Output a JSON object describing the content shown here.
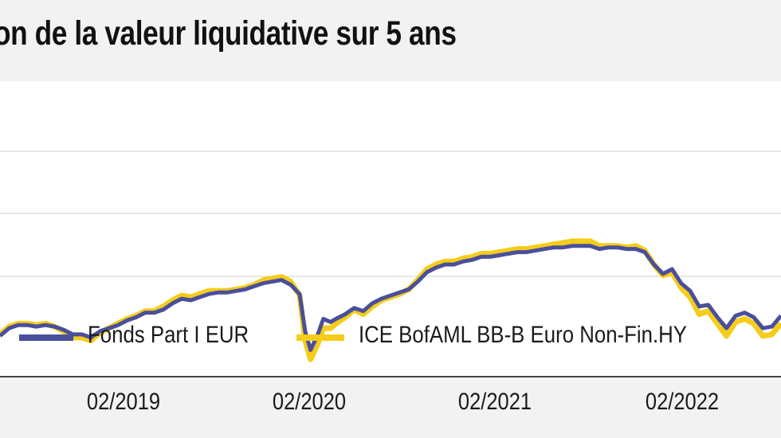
{
  "title": "on de la valeur liquidative sur 5 ans",
  "colors": {
    "fund": "#4a4f9b",
    "index": "#f5cc19",
    "grid": "#dddddd",
    "plot_bg": "#ffffff",
    "page_bg": "#f2f2f2"
  },
  "chart_data": {
    "type": "line",
    "title": "on de la valeur liquidative sur 5 ans",
    "xlabel": "",
    "ylabel": "",
    "x_ticks": [
      "02/2019",
      "02/2020",
      "02/2021",
      "02/2022"
    ],
    "x_range": [
      "2018-06",
      "2023-03"
    ],
    "y_range": [
      0,
      100
    ],
    "grid": "horizontal",
    "legend": "bottom-left inside plot",
    "series": [
      {
        "name": "Fonds Part I EUR",
        "color": "#4a4f9b",
        "x": [
          2018.45,
          2018.5,
          2018.55,
          2018.6,
          2018.65,
          2018.7,
          2018.75,
          2018.8,
          2018.85,
          2018.9,
          2018.95,
          2019.0,
          2019.05,
          2019.1,
          2019.15,
          2019.2,
          2019.25,
          2019.3,
          2019.35,
          2019.4,
          2019.45,
          2019.5,
          2019.55,
          2019.6,
          2019.65,
          2019.7,
          2019.75,
          2019.8,
          2019.85,
          2019.9,
          2019.95,
          2020.0,
          2020.05,
          2020.1,
          2020.13,
          2020.16,
          2020.2,
          2020.23,
          2020.27,
          2020.3,
          2020.35,
          2020.4,
          2020.45,
          2020.5,
          2020.55,
          2020.6,
          2020.65,
          2020.7,
          2020.75,
          2020.8,
          2020.85,
          2020.9,
          2020.95,
          2021.0,
          2021.05,
          2021.1,
          2021.15,
          2021.2,
          2021.25,
          2021.3,
          2021.35,
          2021.4,
          2021.45,
          2021.5,
          2021.55,
          2021.6,
          2021.65,
          2021.7,
          2021.75,
          2021.8,
          2021.85,
          2021.9,
          2021.95,
          2022.0,
          2022.05,
          2022.1,
          2022.15,
          2022.2,
          2022.25,
          2022.3,
          2022.35,
          2022.4,
          2022.45,
          2022.5,
          2022.55,
          2022.6,
          2022.65,
          2022.7,
          2022.75
        ],
        "y": [
          17,
          22,
          24,
          24,
          23,
          24,
          23,
          21,
          18,
          18,
          16,
          20,
          22,
          24,
          27,
          29,
          32,
          32,
          34,
          38,
          41,
          40,
          42,
          44,
          45,
          45,
          46,
          47,
          49,
          51,
          52,
          53,
          50,
          44,
          20,
          8,
          18,
          28,
          26,
          28,
          31,
          35,
          33,
          38,
          41,
          43,
          45,
          47,
          52,
          58,
          61,
          63,
          63,
          65,
          66,
          68,
          68,
          69,
          70,
          71,
          71,
          72,
          73,
          74,
          74,
          75,
          75,
          75,
          73,
          74,
          74,
          73,
          73,
          71,
          63,
          57,
          60,
          51,
          46,
          36,
          37,
          29,
          22,
          30,
          32,
          29,
          22,
          23,
          30
        ],
        "values_note": "index level, approximate"
      },
      {
        "name": "ICE BofAML BB-B Euro Non-Fin.HY",
        "color": "#f5cc19",
        "x": [
          2018.45,
          2018.5,
          2018.55,
          2018.6,
          2018.65,
          2018.7,
          2018.75,
          2018.8,
          2018.85,
          2018.9,
          2018.95,
          2019.0,
          2019.05,
          2019.1,
          2019.15,
          2019.2,
          2019.25,
          2019.3,
          2019.35,
          2019.4,
          2019.45,
          2019.5,
          2019.55,
          2019.6,
          2019.65,
          2019.7,
          2019.75,
          2019.8,
          2019.85,
          2019.9,
          2019.95,
          2020.0,
          2020.05,
          2020.1,
          2020.13,
          2020.16,
          2020.2,
          2020.23,
          2020.27,
          2020.3,
          2020.35,
          2020.4,
          2020.45,
          2020.5,
          2020.55,
          2020.6,
          2020.65,
          2020.7,
          2020.75,
          2020.8,
          2020.85,
          2020.9,
          2020.95,
          2021.0,
          2021.05,
          2021.1,
          2021.15,
          2021.2,
          2021.25,
          2021.3,
          2021.35,
          2021.4,
          2021.45,
          2021.5,
          2021.55,
          2021.6,
          2021.65,
          2021.7,
          2021.75,
          2021.8,
          2021.85,
          2021.9,
          2021.95,
          2022.0,
          2022.05,
          2022.1,
          2022.15,
          2022.2,
          2022.25,
          2022.3,
          2022.35,
          2022.4,
          2022.45,
          2022.5,
          2022.55,
          2022.6,
          2022.65,
          2022.7,
          2022.75
        ],
        "y": [
          18,
          23,
          25,
          25,
          24,
          25,
          23,
          20,
          16,
          16,
          14,
          19,
          22,
          25,
          28,
          30,
          33,
          33,
          36,
          40,
          43,
          42,
          44,
          46,
          46,
          46,
          47,
          48,
          50,
          53,
          54,
          55,
          52,
          43,
          14,
          2,
          12,
          22,
          22,
          25,
          29,
          34,
          31,
          36,
          40,
          42,
          44,
          47,
          53,
          60,
          63,
          65,
          65,
          67,
          68,
          70,
          70,
          71,
          72,
          73,
          73,
          74,
          75,
          76,
          77,
          78,
          78,
          78,
          75,
          75,
          75,
          74,
          75,
          72,
          63,
          56,
          58,
          48,
          42,
          31,
          33,
          25,
          17,
          26,
          28,
          25,
          17,
          18,
          25
        ],
        "values_note": "index level, approximate"
      }
    ]
  },
  "legend": {
    "fund_label": "Fonds Part I EUR",
    "index_label": "ICE BofAML BB-B Euro Non-Fin.HY"
  }
}
